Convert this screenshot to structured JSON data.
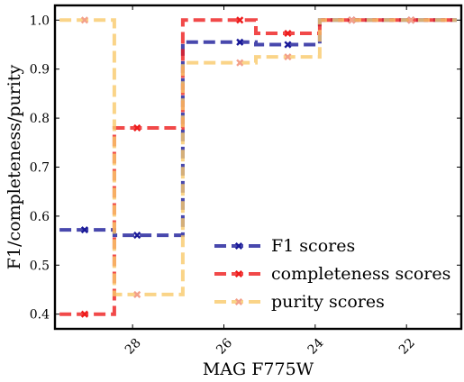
{
  "chart_data": {
    "type": "line",
    "xlabel": "MAG F775W",
    "ylabel": "F1/completeness/purity",
    "xlim": [
      29.7,
      20.8
    ],
    "ylim": [
      0.37,
      1.03
    ],
    "x_ticks": [
      28,
      26,
      24,
      22
    ],
    "x_tick_labels": [
      "28",
      "26",
      "24",
      "22"
    ],
    "y_ticks": [
      0.4,
      0.5,
      0.6,
      0.7,
      0.8,
      0.9,
      1.0
    ],
    "y_tick_labels": [
      "0.4",
      "0.5",
      "0.6",
      "0.7",
      "0.8",
      "0.9",
      "1.0"
    ],
    "grid": false,
    "legend_position": "lower-right",
    "bin_edges": [
      29.6,
      28.4,
      26.9,
      25.3,
      23.9,
      22.5,
      20.9
    ],
    "series": [
      {
        "name": "F1 scores",
        "color": "#1a1a99",
        "marker": "x",
        "x": [
          29.05,
          27.9,
          25.65,
          24.6,
          23.2,
          21.9
        ],
        "values": [
          0.572,
          0.561,
          0.955,
          0.95,
          1.0,
          1.0
        ]
      },
      {
        "name": "completeness scores",
        "color": "#ee1c1c",
        "marker": "x",
        "x": [
          29.05,
          27.9,
          25.65,
          24.6,
          23.2,
          21.9
        ],
        "values": [
          0.4,
          0.78,
          1.0,
          0.973,
          1.0,
          1.0
        ]
      },
      {
        "name": "purity scores",
        "color": "#f9c96a",
        "marker_color": "#f3a08a",
        "marker": "x",
        "x": [
          29.05,
          27.9,
          25.65,
          24.6,
          23.2,
          21.9
        ],
        "values": [
          1.0,
          0.44,
          0.913,
          0.925,
          1.0,
          1.0
        ]
      }
    ]
  }
}
